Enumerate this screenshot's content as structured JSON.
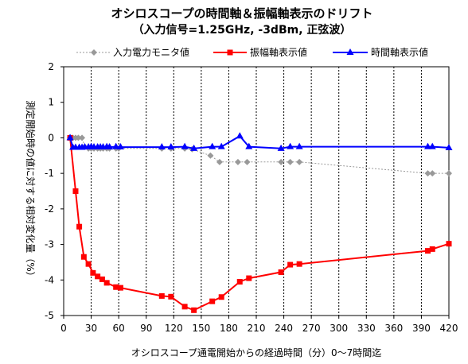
{
  "chart_data": {
    "type": "line",
    "title": "オシロスコープの時間軸＆振幅軸表示のドリフト",
    "subtitle": "（入力信号=1.25GHz, -3dBm, 正弦波）",
    "xlabel": "オシロスコープ通電開始からの経過時間（分）0～7時間迄",
    "ylabel": "測定開始時の値に対する相対変化量（%）",
    "xlim": [
      0,
      420
    ],
    "ylim": [
      -5,
      2
    ],
    "xticks": [
      0,
      30,
      60,
      90,
      120,
      150,
      180,
      210,
      240,
      270,
      300,
      330,
      360,
      390,
      420
    ],
    "yticks": [
      2,
      1,
      0,
      -1,
      -2,
      -3,
      -4,
      -5
    ],
    "xtick_labels": [
      "0",
      "30",
      "60",
      "90",
      "120",
      "150",
      "180",
      "210",
      "240",
      "270",
      "300",
      "330",
      "360",
      "390",
      "420"
    ],
    "ytick_labels": [
      "2",
      "1",
      "0",
      "-1",
      "-2",
      "-3",
      "-4",
      "-5"
    ],
    "grid": "vertical dashed",
    "legend_position": "top",
    "series": [
      {
        "name": "入力電力モニタ値",
        "color": "#999999",
        "marker": "diamond",
        "line": "dotted",
        "x": [
          7,
          10,
          13,
          16,
          20,
          23,
          27,
          30,
          33,
          37,
          40,
          43,
          47,
          50,
          57,
          60,
          107,
          117,
          132,
          140,
          160,
          170,
          190,
          200,
          237,
          247,
          257,
          397,
          402,
          420
        ],
        "y": [
          0.0,
          0.0,
          0.0,
          0.0,
          0.0,
          -0.25,
          -0.3,
          -0.3,
          -0.3,
          -0.3,
          -0.3,
          -0.3,
          -0.3,
          -0.3,
          -0.3,
          -0.3,
          -0.3,
          -0.3,
          -0.3,
          -0.32,
          -0.5,
          -0.68,
          -0.68,
          -0.68,
          -0.68,
          -0.68,
          -0.68,
          -1.0,
          -1.0,
          -1.0
        ]
      },
      {
        "name": "振幅軸表示値",
        "color": "#ff0000",
        "marker": "square",
        "line": "solid",
        "x": [
          7,
          13,
          17,
          22,
          27,
          32,
          37,
          42,
          47,
          57,
          62,
          107,
          117,
          132,
          142,
          162,
          172,
          192,
          202,
          237,
          247,
          257,
          397,
          402,
          420
        ],
        "y": [
          0.0,
          -1.5,
          -2.5,
          -3.35,
          -3.55,
          -3.8,
          -3.9,
          -3.98,
          -4.08,
          -4.2,
          -4.22,
          -4.45,
          -4.47,
          -4.75,
          -4.85,
          -4.6,
          -4.48,
          -4.05,
          -3.95,
          -3.78,
          -3.57,
          -3.55,
          -3.18,
          -3.13,
          -2.98
        ]
      },
      {
        "name": "時間軸表示値",
        "color": "#0000ff",
        "marker": "triangle",
        "line": "solid",
        "x": [
          7,
          10,
          13,
          17,
          20,
          23,
          27,
          30,
          33,
          37,
          40,
          43,
          47,
          50,
          57,
          62,
          107,
          117,
          132,
          142,
          162,
          172,
          192,
          202,
          237,
          247,
          257,
          397,
          402,
          420
        ],
        "y": [
          0.0,
          -0.27,
          -0.27,
          -0.27,
          -0.27,
          -0.26,
          -0.26,
          -0.25,
          -0.26,
          -0.26,
          -0.26,
          -0.26,
          -0.25,
          -0.26,
          -0.25,
          -0.26,
          -0.26,
          -0.26,
          -0.25,
          -0.3,
          -0.25,
          -0.25,
          0.05,
          -0.25,
          -0.3,
          -0.25,
          -0.25,
          -0.25,
          -0.25,
          -0.28
        ]
      }
    ]
  }
}
